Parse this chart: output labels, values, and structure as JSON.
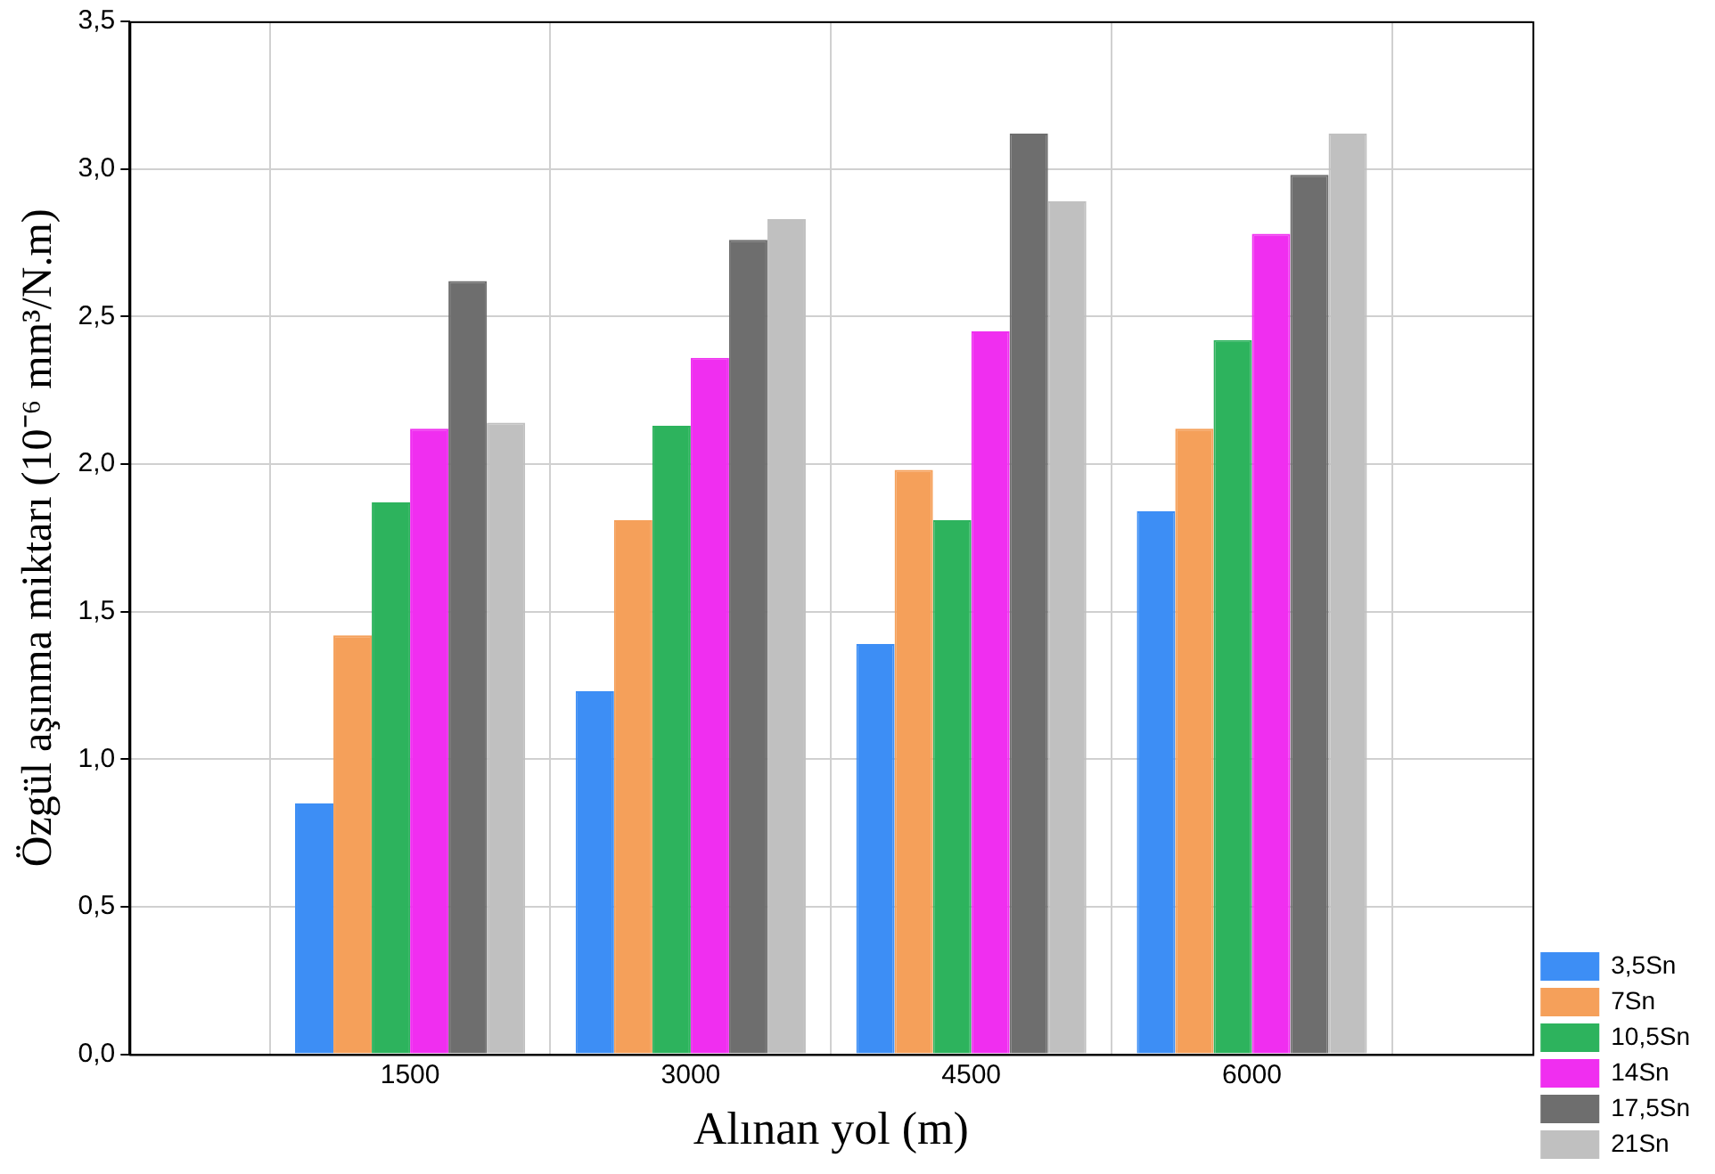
{
  "chart_data": {
    "type": "bar",
    "xlabel": "Alınan yol (m)",
    "ylabel": "Özgül aşınma miktarı (10⁻⁶ mm³/N.m)",
    "x": [
      1500,
      3000,
      4500,
      6000
    ],
    "xlim": [
      0,
      7500
    ],
    "xticks": [
      1500,
      3000,
      4500,
      6000
    ],
    "ylim": [
      0,
      3.5
    ],
    "yticks": [
      {
        "value": 0,
        "label": "0,0"
      },
      {
        "value": 0.5,
        "label": "0,5"
      },
      {
        "value": 1,
        "label": "1,0"
      },
      {
        "value": 1.5,
        "label": "1,5"
      },
      {
        "value": 2,
        "label": "2,0"
      },
      {
        "value": 2.5,
        "label": "2,5"
      },
      {
        "value": 3,
        "label": "3,0"
      },
      {
        "value": 3.5,
        "label": "3,5"
      }
    ],
    "grid": true,
    "legend": "bottom right",
    "series": [
      {
        "name": "3,5Sn",
        "color": "#3d8ef5",
        "values": [
          0.85,
          1.23,
          1.39,
          1.84
        ]
      },
      {
        "name": "7Sn",
        "color": "#f5a05a",
        "values": [
          1.42,
          1.81,
          1.98,
          2.12
        ]
      },
      {
        "name": "10,5Sn",
        "color": "#2db35d",
        "values": [
          1.87,
          2.13,
          1.81,
          2.42
        ]
      },
      {
        "name": "14Sn",
        "color": "#f02ef0",
        "values": [
          2.12,
          2.36,
          2.45,
          2.78
        ]
      },
      {
        "name": "17,5Sn",
        "color": "#6e6e6e",
        "values": [
          2.62,
          2.76,
          3.12,
          2.98
        ]
      },
      {
        "name": "21Sn",
        "color": "#c0c0c0",
        "values": [
          2.14,
          2.83,
          2.89,
          3.12
        ]
      }
    ]
  }
}
